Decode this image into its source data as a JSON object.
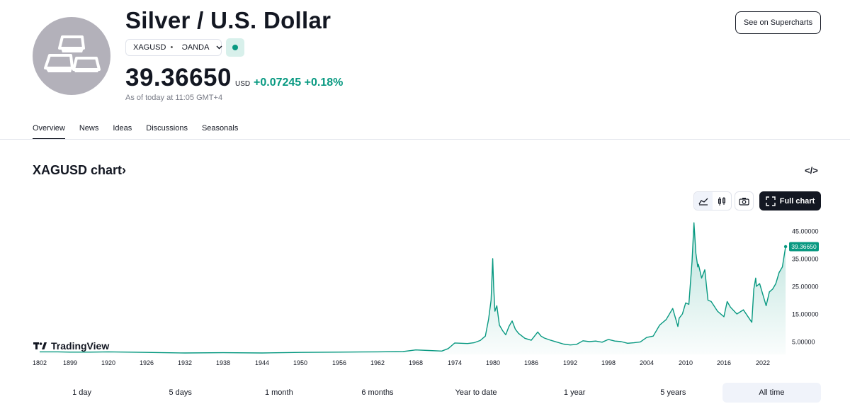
{
  "header": {
    "title": "Silver / U.S. Dollar",
    "symbol": "XAGUSD",
    "separator": "•",
    "broker": "OANDA",
    "price": "39.36650",
    "currency": "USD",
    "change": "+0.07245",
    "change_pct": "+0.18%",
    "as_of": "As of today at 11:05 GMT+4",
    "supercharts_label": "See on Supercharts",
    "accent_color": "#089981"
  },
  "tabs": [
    {
      "label": "Overview",
      "active": true
    },
    {
      "label": "News",
      "active": false
    },
    {
      "label": "Ideas",
      "active": false
    },
    {
      "label": "Discussions",
      "active": false
    },
    {
      "label": "Seasonals",
      "active": false
    }
  ],
  "chart_section": {
    "title": "XAGUSD chart",
    "title_chevron": "›",
    "embed_icon": "</>",
    "full_chart_label": "Full chart",
    "brand": "TradingView"
  },
  "chart_data": {
    "type": "area",
    "title": "XAGUSD chart",
    "xlabel": "",
    "ylabel": "",
    "x_tick_labels": [
      "1802",
      "1899",
      "1920",
      "1926",
      "1932",
      "1938",
      "1944",
      "1950",
      "1956",
      "1962",
      "1968",
      "1974",
      "1980",
      "1986",
      "1992",
      "1998",
      "2004",
      "2010",
      "2016",
      "2022"
    ],
    "y_tick_labels": [
      "45.00000",
      "35.00000",
      "25.00000",
      "15.00000",
      "5.00000"
    ],
    "y_ticks": [
      45,
      35,
      25,
      15,
      5
    ],
    "ylim": [
      0,
      48
    ],
    "last_value": 39.3665,
    "last_value_label": "39.36650",
    "series": [
      {
        "name": "XAGUSD",
        "x": [
          1802,
          1860,
          1899,
          1910,
          1920,
          1926,
          1932,
          1938,
          1944,
          1950,
          1956,
          1962,
          1966,
          1968,
          1970,
          1972,
          1973,
          1974,
          1975,
          1976,
          1977,
          1978,
          1978.8,
          1979.3,
          1979.7,
          1979.95,
          1980.1,
          1980.3,
          1980.6,
          1981,
          1981.5,
          1982,
          1982.5,
          1983,
          1983.5,
          1984,
          1985,
          1986,
          1987,
          1987.5,
          1988,
          1989,
          1990,
          1991,
          1992,
          1993,
          1994,
          1995,
          1996,
          1997,
          1998,
          1999,
          2000,
          2001,
          2002,
          2003,
          2004,
          2005,
          2006,
          2007,
          2008,
          2008.8,
          2009,
          2009.5,
          2010,
          2010.5,
          2011,
          2011.3,
          2011.6,
          2011.9,
          2012,
          2012.5,
          2013,
          2013.5,
          2014,
          2015,
          2016,
          2016.5,
          2017,
          2018,
          2019,
          2020,
          2020.3,
          2020.6,
          2020.9,
          2021,
          2021.5,
          2022,
          2022.5,
          2023,
          2023.5,
          2024,
          2024.5,
          2025,
          2025.5
        ],
        "values": [
          1.3,
          1.3,
          1.2,
          1.2,
          1.3,
          1.1,
          0.9,
          1.0,
          0.9,
          1.1,
          1.2,
          1.3,
          1.4,
          2.0,
          1.8,
          1.6,
          2.5,
          4.5,
          4.4,
          4.3,
          4.6,
          5.4,
          7.0,
          13.0,
          20.0,
          35.0,
          25.0,
          16.0,
          18.0,
          11.0,
          9.0,
          7.5,
          10.5,
          12.5,
          9.5,
          8.0,
          6.2,
          5.5,
          8.5,
          7.0,
          6.3,
          5.5,
          4.8,
          4.1,
          3.8,
          4.0,
          5.3,
          5.0,
          5.2,
          4.8,
          5.8,
          5.2,
          5.0,
          4.4,
          4.6,
          4.9,
          6.5,
          7.0,
          11.0,
          13.0,
          17.0,
          10.5,
          13.5,
          15.0,
          19.0,
          18.5,
          34.0,
          48.0,
          37.0,
          32.0,
          33.0,
          28.0,
          31.0,
          20.0,
          19.5,
          16.0,
          14.0,
          19.5,
          17.5,
          15.0,
          16.5,
          13.0,
          12.0,
          24.0,
          28.0,
          25.0,
          26.0,
          22.0,
          18.0,
          23.0,
          24.0,
          26.0,
          30.0,
          32.0,
          39.37
        ]
      }
    ]
  },
  "ranges": [
    {
      "label": "1 day",
      "active": false
    },
    {
      "label": "5 days",
      "active": false
    },
    {
      "label": "1 month",
      "active": false
    },
    {
      "label": "6 months",
      "active": false
    },
    {
      "label": "Year to date",
      "active": false
    },
    {
      "label": "1 year",
      "active": false
    },
    {
      "label": "5 years",
      "active": false
    },
    {
      "label": "All time",
      "active": true
    }
  ]
}
